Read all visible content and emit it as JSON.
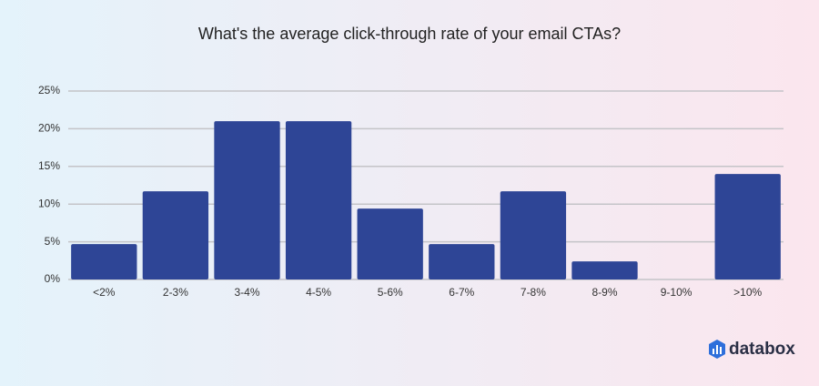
{
  "chart_data": {
    "type": "bar",
    "title": "What's the average click-through rate of your email CTAs?",
    "categories": [
      "<2%",
      "2-3%",
      "3-4%",
      "4-5%",
      "5-6%",
      "6-7%",
      "7-8%",
      "8-9%",
      "9-10%",
      ">10%"
    ],
    "values": [
      4.7,
      11.7,
      21.0,
      21.0,
      9.4,
      4.7,
      11.7,
      2.4,
      0,
      14.0
    ],
    "color": "#2e4596",
    "ylim": [
      0,
      25
    ],
    "yticks": [
      {
        "value": 0,
        "label": "0%"
      },
      {
        "value": 5,
        "label": "5%"
      },
      {
        "value": 10,
        "label": "10%"
      },
      {
        "value": 15,
        "label": "15%"
      },
      {
        "value": 20,
        "label": "20%"
      },
      {
        "value": 25,
        "label": "25%"
      }
    ],
    "grid": true
  },
  "brand": "databox"
}
